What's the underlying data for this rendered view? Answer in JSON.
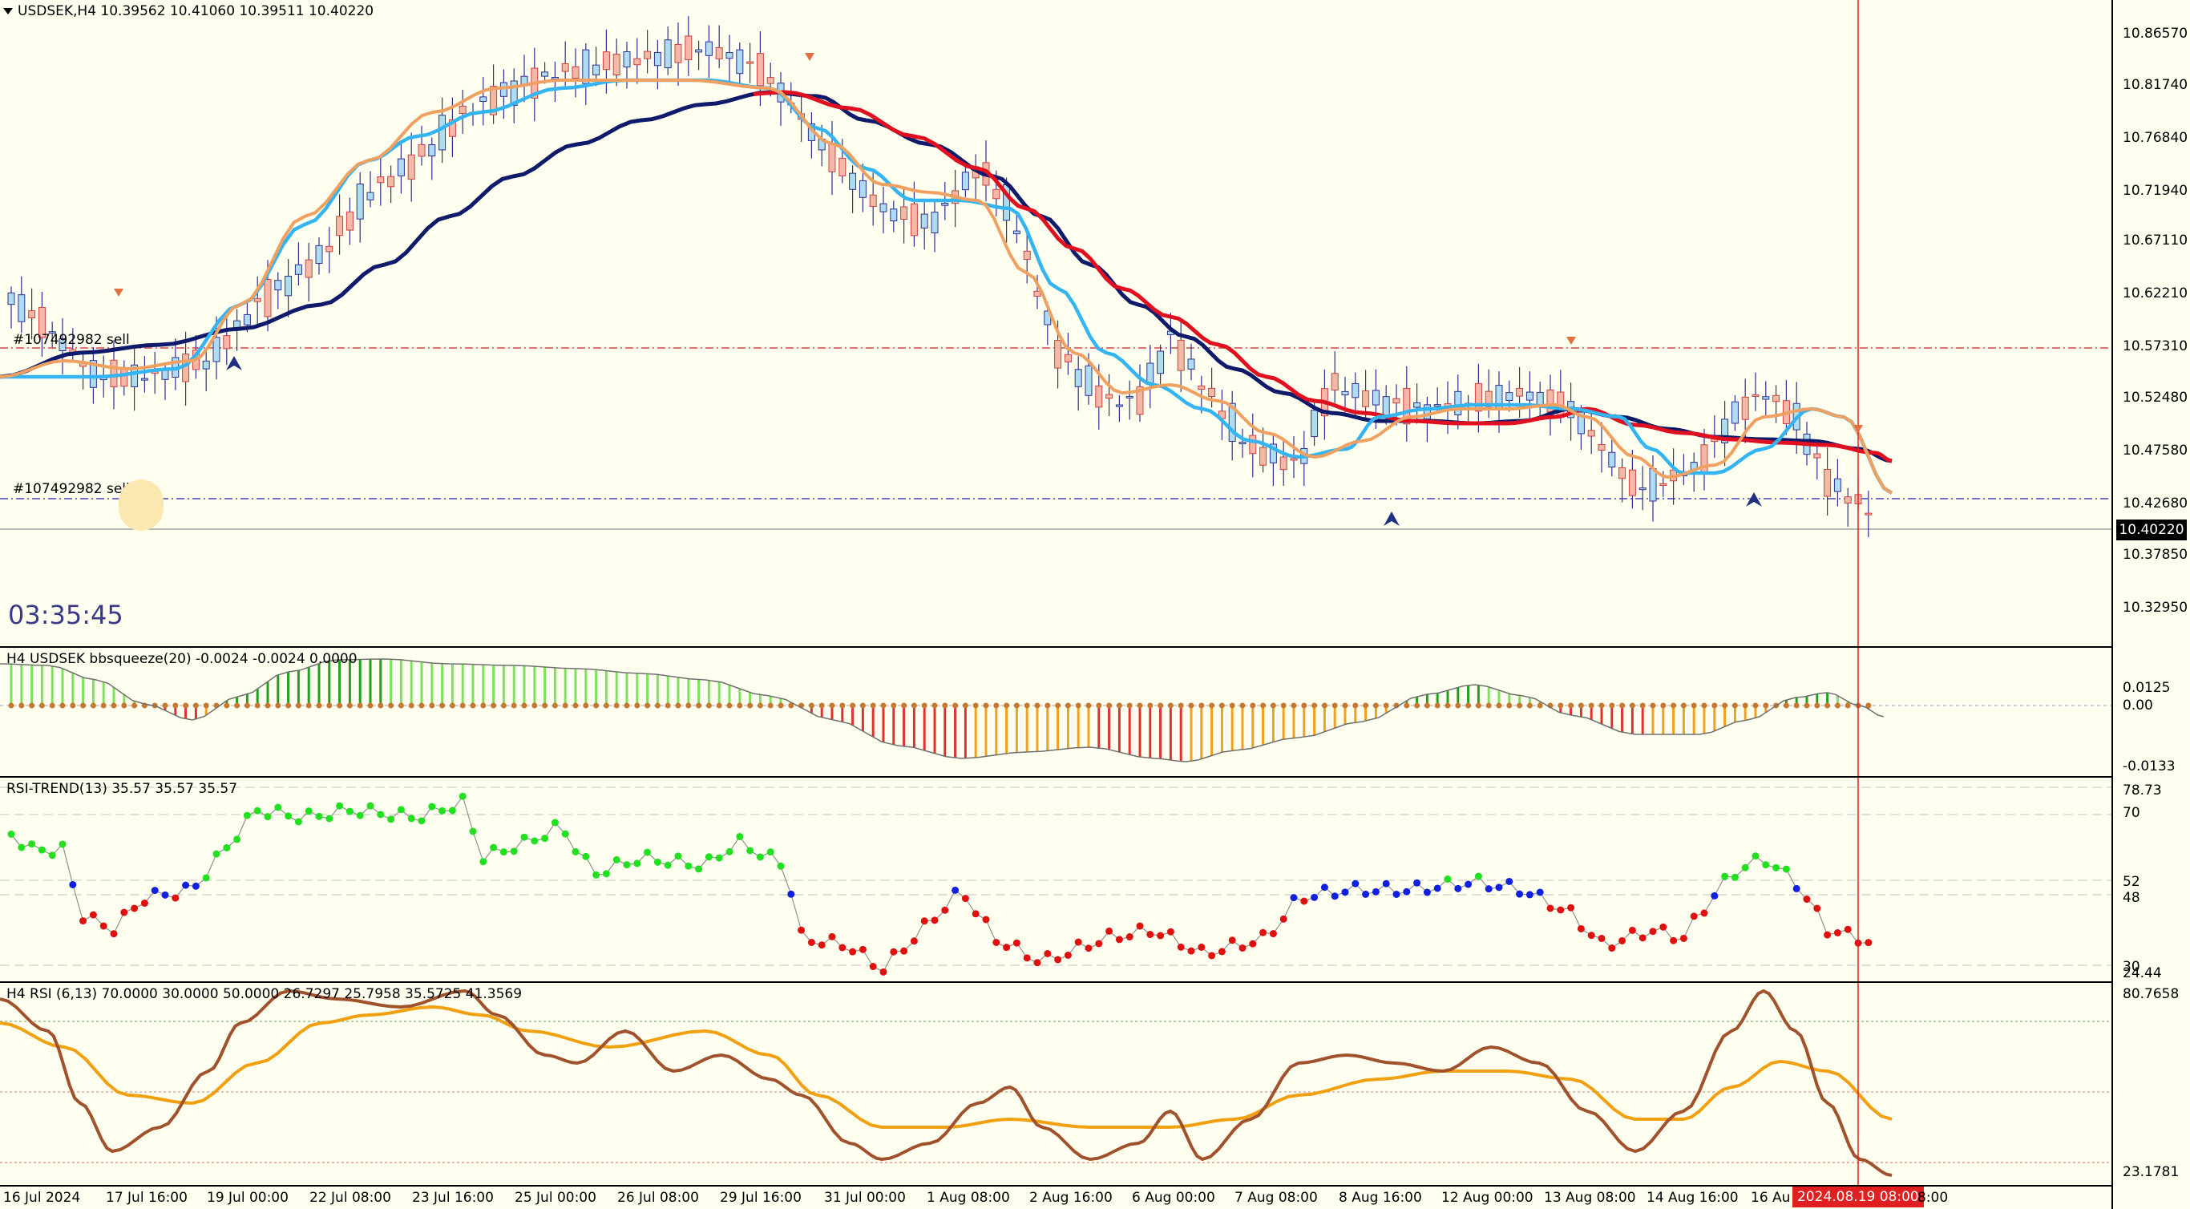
{
  "main": {
    "symbol_info": "USDSEK,H4  10.39562 10.41060 10.39511 10.40220",
    "current_price": "10.40220",
    "timer": "03:35:45",
    "order_label_1": "#107492982 sell",
    "order_label_2": "#107492982 sell",
    "price_ticks": [
      "10.86570",
      "10.81740",
      "10.76840",
      "10.71940",
      "10.67110",
      "10.62210",
      "10.57310",
      "10.52480",
      "10.47580",
      "10.42680",
      "10.37850",
      "10.32950"
    ]
  },
  "bbsqueeze": {
    "title": "H4 USDSEK bbsqueeze(20) -0.0024 -0.0024 0.0000",
    "ticks": [
      "0.0125",
      "0.00",
      "-0.0133"
    ]
  },
  "rsitrend": {
    "title": "RSI-TREND(13) 35.57 35.57 35.57",
    "ticks": [
      "78.73",
      "70",
      "52",
      "48",
      "30",
      "24.44"
    ]
  },
  "rsi": {
    "title": "H4 RSI  (6,13) 70.0000 30.0000 50.0000 26.7297 25.7958 35.5725 41.3569",
    "ticks": [
      "80.7658",
      "23.1781"
    ]
  },
  "time_axis": {
    "labels": [
      "16 Jul 2024",
      "17 Jul 16:00",
      "19 Jul 00:00",
      "22 Jul 08:00",
      "23 Jul 16:00",
      "25 Jul 00:00",
      "26 Jul 08:00",
      "29 Jul 16:00",
      "31 Jul 00:00",
      "1 Aug 08:00",
      "2 Aug 16:00",
      "6 Aug 00:00",
      "7 Aug 08:00",
      "8 Aug 16:00",
      "12 Aug 00:00",
      "13 Aug 08:00",
      "14 Aug 16:00",
      "16 Au"
    ],
    "cursor_label": "2024.08.19 08:00",
    "tail_label": "8:00"
  },
  "colors": {
    "background": "#fffff0",
    "bull_candle": "#aedcf0",
    "bear_candle": "#f4b8a8",
    "ma_fast_light": "#34b4f0",
    "ma_fast_orange": "#f0a060",
    "ma_slow_navy": "#101a6a",
    "ma_slow_red": "#e01020",
    "cursor": "#e02020"
  }
}
